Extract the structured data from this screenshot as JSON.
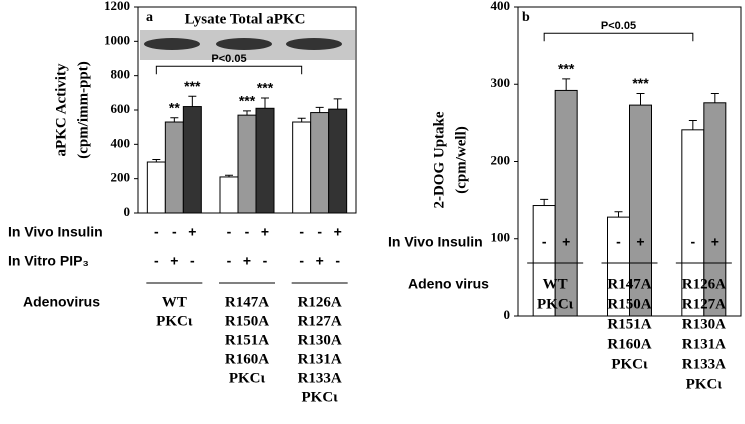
{
  "chart_data": [
    {
      "type": "bar",
      "panel_label": "a",
      "inset_label": "Lysate Total aPKC",
      "ylabel": [
        "aPKC Activity",
        "(cpm/imm-ppt)"
      ],
      "ylim": [
        0,
        1200
      ],
      "yticks": [
        0,
        200,
        400,
        600,
        800,
        1000,
        1200
      ],
      "categories": [
        [
          "WT",
          "PKCι"
        ],
        [
          "R147A",
          "R150A",
          "R151A",
          "R160A",
          "PKCι"
        ],
        [
          "R126A",
          "R127A",
          "R130A",
          "R131A",
          "R133A",
          "PKCι"
        ]
      ],
      "series": [
        {
          "color": "#ffffff",
          "values": [
            297,
            210,
            530
          ],
          "errors": [
            15,
            10,
            22
          ],
          "significance": [
            null,
            null,
            null
          ]
        },
        {
          "color": "#999999",
          "values": [
            530,
            570,
            585
          ],
          "errors": [
            25,
            25,
            30
          ],
          "significance": [
            "**",
            "***",
            null
          ]
        },
        {
          "color": "#333333",
          "values": [
            620,
            610,
            605
          ],
          "errors": [
            60,
            60,
            60
          ],
          "significance": [
            "***",
            "***",
            null
          ]
        }
      ],
      "bracket": {
        "label": "P<0.05",
        "value": 855
      },
      "rows": [
        {
          "label": "In Vivo Insulin",
          "signs": [
            "-",
            "-",
            "+"
          ]
        },
        {
          "label": "In Vitro PIP₃",
          "signs": [
            "-",
            "+",
            "-"
          ]
        }
      ],
      "group_label": "Adenovirus"
    },
    {
      "type": "bar",
      "panel_label": "b",
      "ylabel": [
        "2-DOG Uptake",
        "(cpm/well)"
      ],
      "ylim": [
        0,
        400
      ],
      "yticks": [
        0,
        100,
        200,
        300,
        400
      ],
      "categories": [
        [
          "WT",
          "PKCι"
        ],
        [
          "R147A",
          "R150A",
          "R151A",
          "R160A",
          "PKCι"
        ],
        [
          "R126A",
          "R127A",
          "R130A",
          "R131A",
          "R133A",
          "PKCι"
        ]
      ],
      "series": [
        {
          "color": "#ffffff",
          "values": [
            143,
            128,
            241
          ],
          "errors": [
            8,
            7,
            12
          ],
          "significance": [
            null,
            null,
            null
          ]
        },
        {
          "color": "#999999",
          "values": [
            292,
            273,
            276
          ],
          "errors": [
            15,
            15,
            12
          ],
          "significance": [
            "***",
            "***",
            null
          ]
        }
      ],
      "bracket": {
        "label": "P<0.05",
        "value": 366
      },
      "rows": [
        {
          "label": "In Vivo Insulin",
          "signs": [
            "-",
            "+"
          ]
        }
      ],
      "group_label": "Adeno virus"
    }
  ]
}
